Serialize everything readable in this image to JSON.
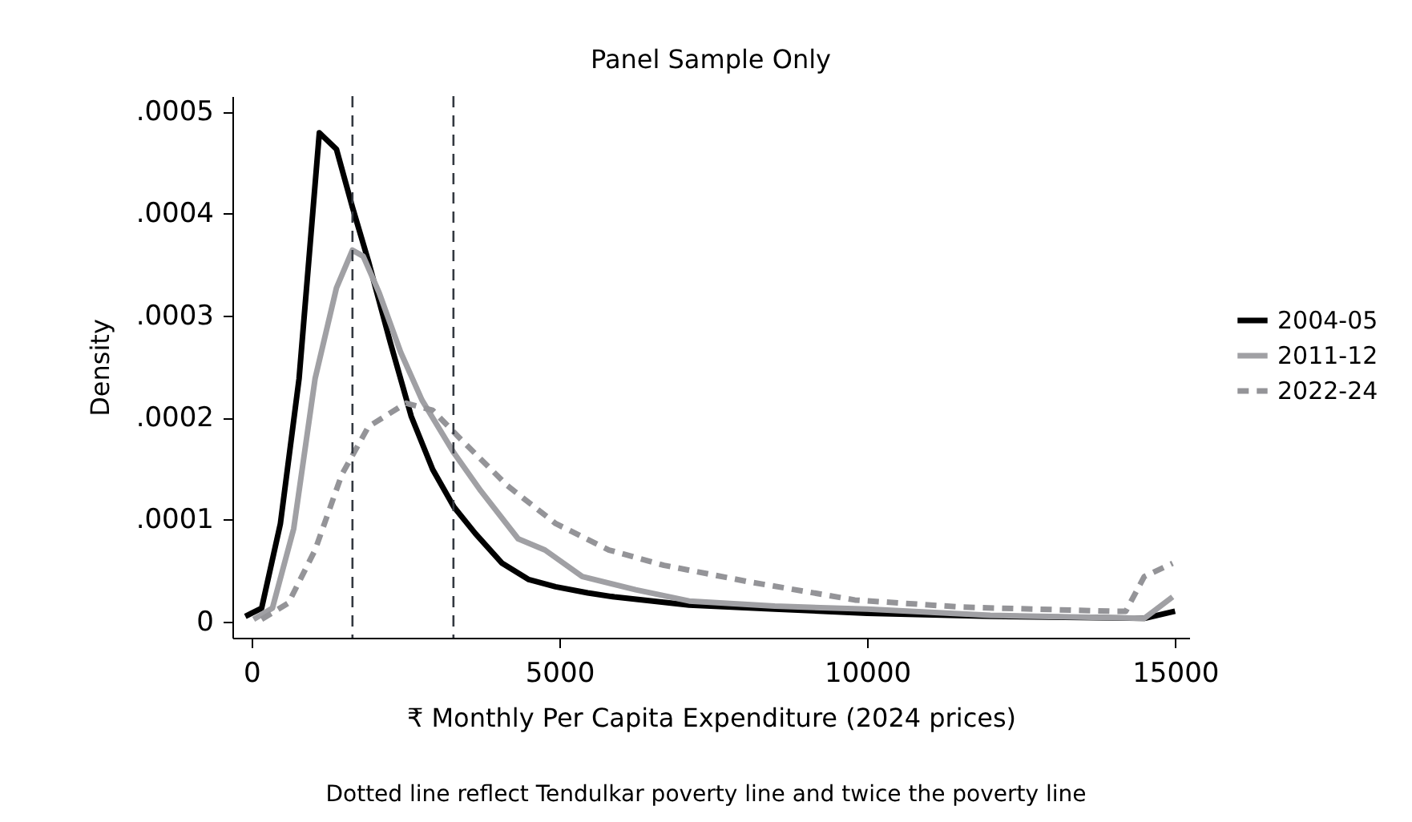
{
  "chart_data": {
    "type": "line",
    "title": "Panel Sample Only",
    "xlabel": "₹ Monthly Per Capita Expenditure (2024 prices)",
    "ylabel": "Density",
    "annotations": [
      "Dotted line reflect Tendulkar poverty line and twice the poverty line"
    ],
    "xlim": [
      -310,
      15230
    ],
    "xticks": [
      0,
      5000,
      10000,
      15000
    ],
    "ylim": [
      -1.6e-05,
      0.000515
    ],
    "yticks": [
      {
        "value": 0,
        "label": "0"
      },
      {
        "value": 0.0001,
        "label": ".0001"
      },
      {
        "value": 0.0002,
        "label": ".0002"
      },
      {
        "value": 0.0003,
        "label": ".0003"
      },
      {
        "value": 0.0004,
        "label": ".0004"
      },
      {
        "value": 0.0005,
        "label": ".0005"
      }
    ],
    "grid": false,
    "legend": "right",
    "ref_lines": [
      {
        "axis": "x",
        "value": 1640,
        "color": "#333840",
        "line_style": "dashed"
      },
      {
        "axis": "x",
        "value": 3280,
        "color": "#333840",
        "line_style": "dashed"
      }
    ],
    "series": [
      {
        "name": "2004-05",
        "color": "#000000",
        "line_style": "solid",
        "x": [
          -100,
          165,
          470,
          773,
          1102,
          1380,
          1640,
          1900,
          2248,
          2595,
          2943,
          3290,
          3638,
          4071,
          4505,
          4939,
          5460,
          5894,
          7109,
          8500,
          10000,
          12000,
          14500,
          15000
        ],
        "values": [
          5e-06,
          1.3e-05,
          9.6e-05,
          0.000238,
          0.000479,
          0.000463,
          0.000406,
          0.000353,
          0.000275,
          0.000201,
          0.000149,
          0.000112,
          8.6e-05,
          5.7e-05,
          4.1e-05,
          3.4e-05,
          2.8e-05,
          2.4e-05,
          1.6e-05,
          1.2e-05,
          8e-06,
          5e-06,
          3e-06,
          1e-05
        ]
      },
      {
        "name": "2011-12",
        "color": "#a0a0a4",
        "line_style": "solid",
        "x": [
          35,
          340,
          686,
          1033,
          1380,
          1640,
          1815,
          2075,
          2422,
          2769,
          3290,
          3724,
          4331,
          4766,
          5373,
          6241,
          7109,
          8500,
          10000,
          12000,
          14500,
          14960
        ],
        "values": [
          2e-06,
          1.3e-05,
          9.1e-05,
          0.000238,
          0.000327,
          0.000364,
          0.000358,
          0.000322,
          0.000264,
          0.000217,
          0.000165,
          0.000128,
          8.1e-05,
          7e-05,
          4.4e-05,
          3.1e-05,
          2e-05,
          1.5e-05,
          1.2e-05,
          6e-06,
          3e-06,
          2.4e-05
        ]
      },
      {
        "name": "2022-24",
        "color": "#949498",
        "line_style": "dashed",
        "x": [
          165,
          600,
          1033,
          1467,
          1900,
          2509,
          2943,
          3377,
          4158,
          4939,
          5807,
          6700,
          8065,
          9800,
          11536,
          13966,
          14200,
          14500,
          14960
        ],
        "values": [
          2e-06,
          1.8e-05,
          7e-05,
          0.000144,
          0.000191,
          0.000214,
          0.000207,
          0.00018,
          0.000133,
          9.6e-05,
          7e-05,
          5.5e-05,
          3.9e-05,
          2.1e-05,
          1.4e-05,
          1e-05,
          1e-05,
          4.4e-05,
          5.7e-05
        ]
      }
    ]
  }
}
